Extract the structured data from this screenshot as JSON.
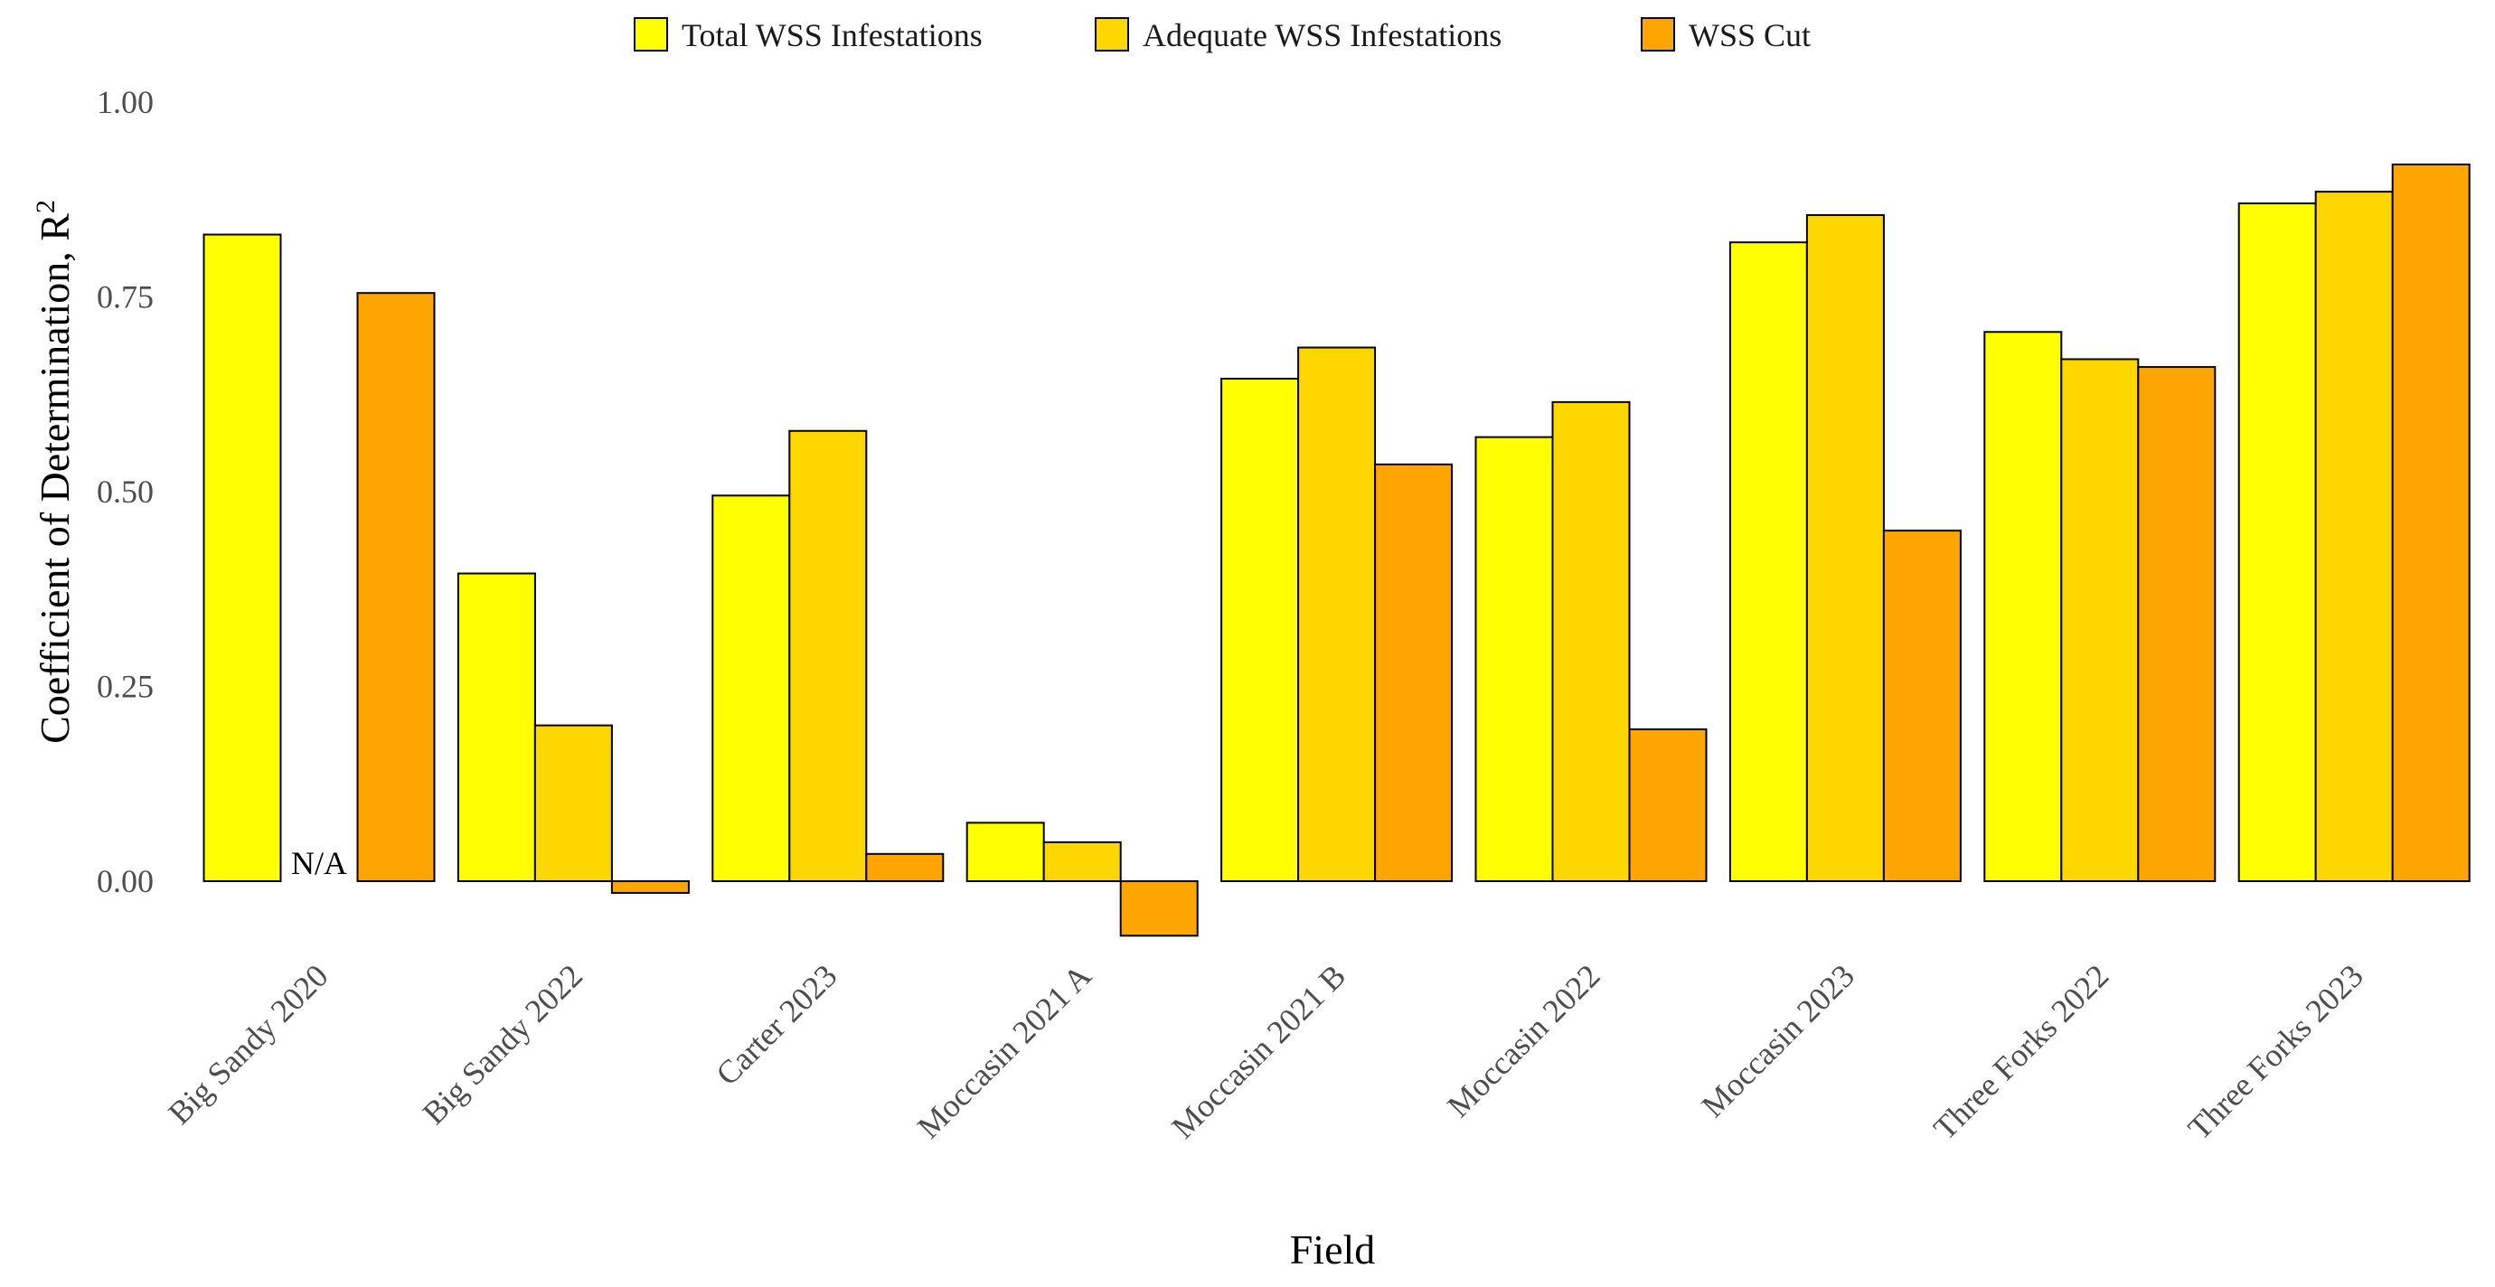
{
  "chart_data": {
    "type": "bar",
    "title": "",
    "xlabel": "Field",
    "ylabel": "Coefficient of Determination, R",
    "ylabel_superscript": "2",
    "ylim": [
      -0.1,
      1.0
    ],
    "yticks": [
      "0.00",
      "0.25",
      "0.50",
      "0.75",
      "1.00"
    ],
    "ytick_values": [
      0,
      0.25,
      0.5,
      0.75,
      1.0
    ],
    "grid": false,
    "legend_position": "top",
    "categories": [
      "Big Sandy 2020",
      "Big Sandy 2022",
      "Carter 2023",
      "Moccasin 2021 A",
      "Moccasin 2021 B",
      "Moccasin 2022",
      "Moccasin 2023",
      "Three Forks 2022",
      "Three Forks 2023"
    ],
    "series": [
      {
        "name": "Total WSS Infestations",
        "color": "#ffff00",
        "values": [
          0.83,
          0.395,
          0.495,
          0.075,
          0.645,
          0.57,
          0.82,
          0.705,
          0.87
        ]
      },
      {
        "name": "Adequate WSS Infestations",
        "color": "#ffd700",
        "values": [
          null,
          0.2,
          0.578,
          0.05,
          0.685,
          0.615,
          0.855,
          0.67,
          0.885
        ]
      },
      {
        "name": "WSS Cut",
        "color": "#ffa500",
        "values": [
          0.755,
          -0.015,
          0.035,
          -0.07,
          0.535,
          0.195,
          0.45,
          0.66,
          0.92
        ]
      }
    ],
    "annotations": [
      {
        "text": "N/A",
        "category": "Big Sandy 2020",
        "series": "Adequate WSS Infestations"
      }
    ]
  }
}
